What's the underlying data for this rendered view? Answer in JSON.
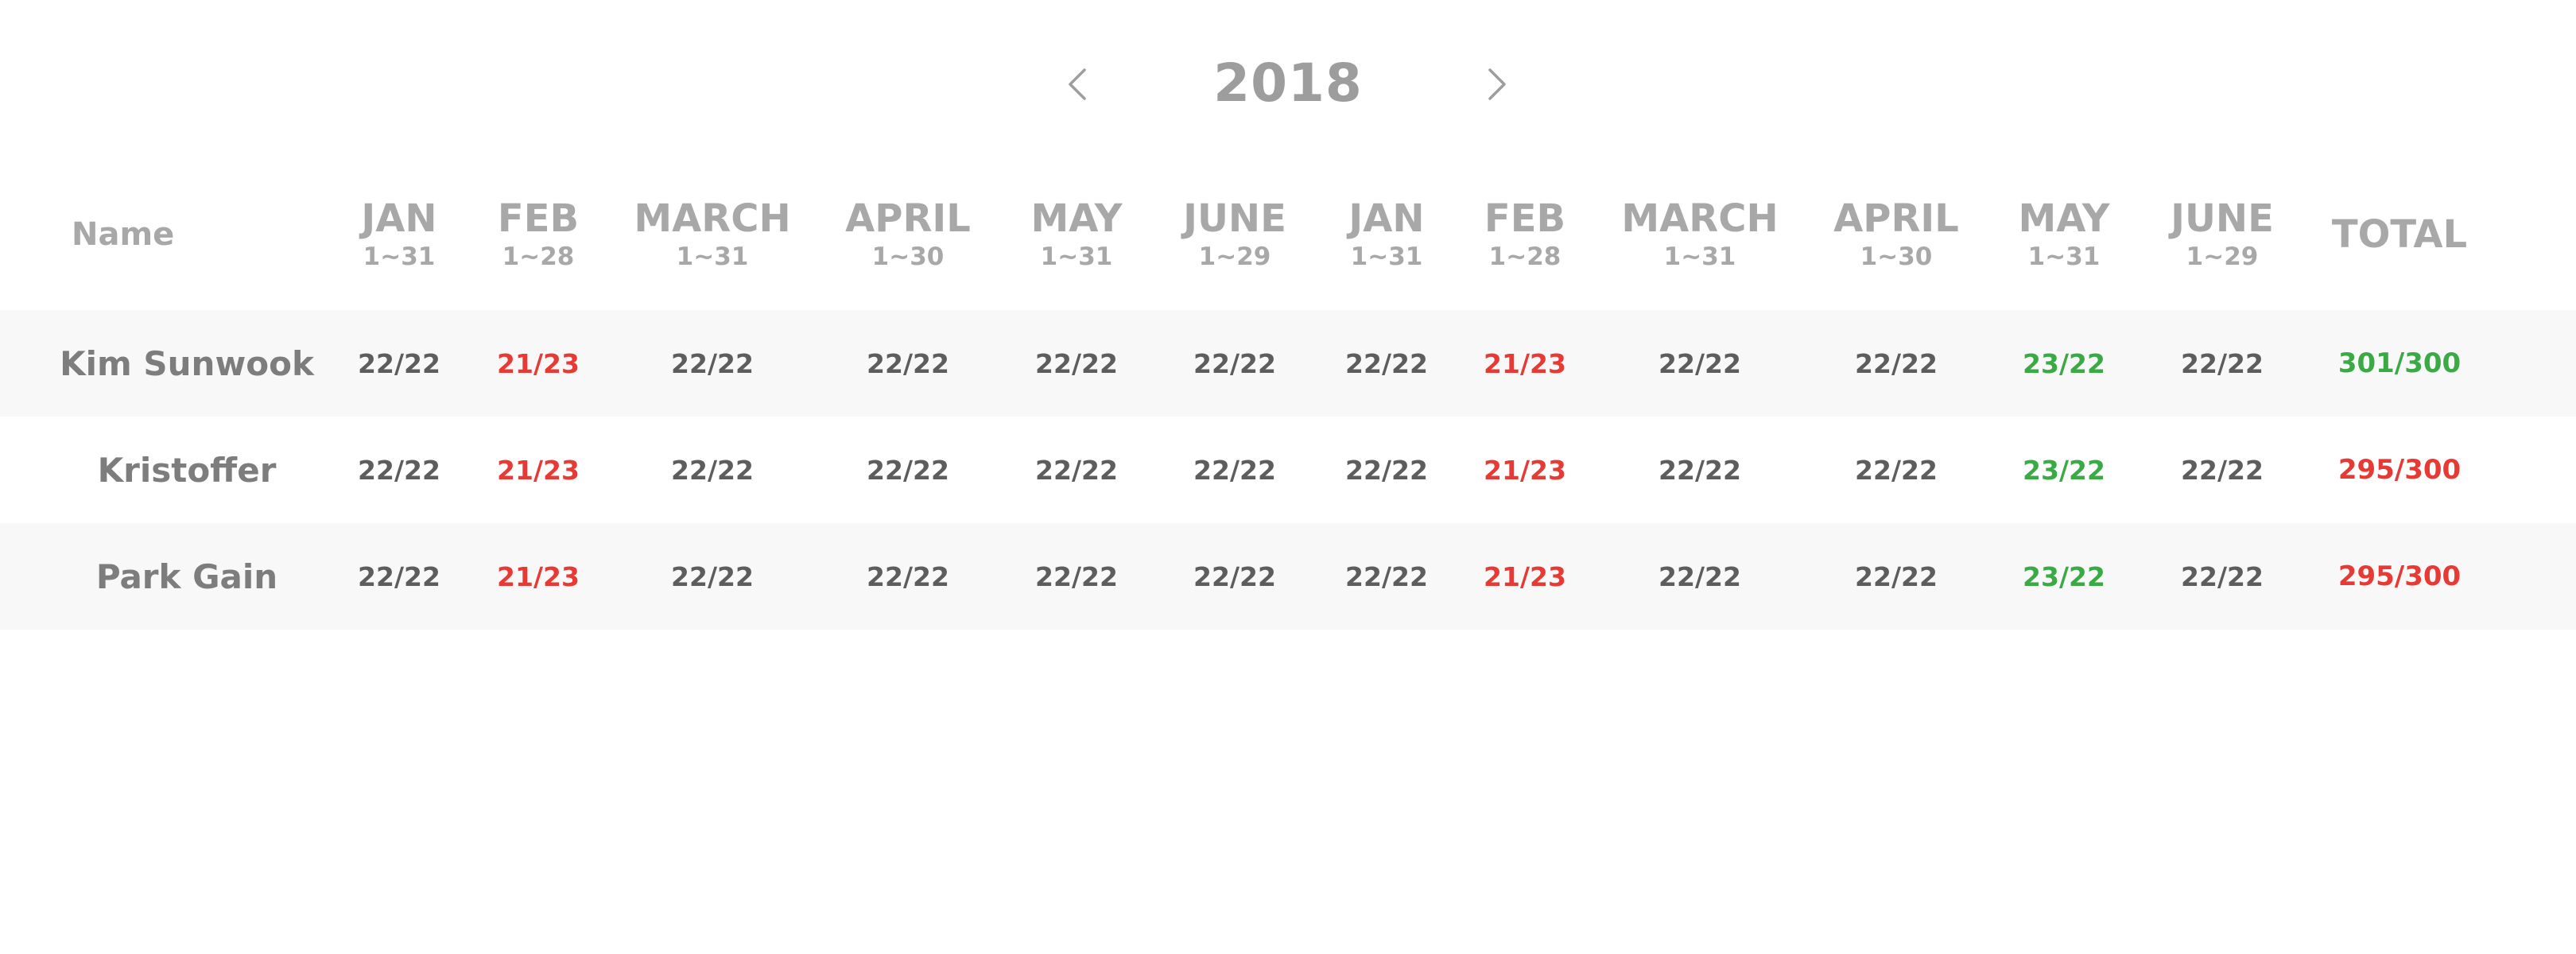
{
  "colors": {
    "default": "#5d5d5d",
    "under": "#e83a35",
    "over": "#3aaa45",
    "header": "#a8a8a8",
    "row_alt": "#f8f8f8"
  },
  "nav": {
    "year": "2018",
    "prev_icon": "chevron-left-icon",
    "next_icon": "chevron-right-icon"
  },
  "table": {
    "name_header": "Name",
    "total_header": "TOTAL",
    "months": [
      {
        "label": "JAN",
        "range": "1~31"
      },
      {
        "label": "FEB",
        "range": "1~28"
      },
      {
        "label": "MARCH",
        "range": "1~31"
      },
      {
        "label": "APRIL",
        "range": "1~30"
      },
      {
        "label": "MAY",
        "range": "1~31"
      },
      {
        "label": "JUNE",
        "range": "1~29"
      },
      {
        "label": "JAN",
        "range": "1~31"
      },
      {
        "label": "FEB",
        "range": "1~28"
      },
      {
        "label": "MARCH",
        "range": "1~31"
      },
      {
        "label": "APRIL",
        "range": "1~30"
      },
      {
        "label": "MAY",
        "range": "1~31"
      },
      {
        "label": "JUNE",
        "range": "1~29"
      }
    ],
    "rows": [
      {
        "name": "Kim Sunwook",
        "values": [
          {
            "text": "22/22",
            "status": "default"
          },
          {
            "text": "21/23",
            "status": "under"
          },
          {
            "text": "22/22",
            "status": "default"
          },
          {
            "text": "22/22",
            "status": "default"
          },
          {
            "text": "22/22",
            "status": "default"
          },
          {
            "text": "22/22",
            "status": "default"
          },
          {
            "text": "22/22",
            "status": "default"
          },
          {
            "text": "21/23",
            "status": "under"
          },
          {
            "text": "22/22",
            "status": "default"
          },
          {
            "text": "22/22",
            "status": "default"
          },
          {
            "text": "23/22",
            "status": "over"
          },
          {
            "text": "22/22",
            "status": "default"
          }
        ],
        "total": {
          "text": "301/300",
          "status": "over"
        }
      },
      {
        "name": "Kristoffer",
        "values": [
          {
            "text": "22/22",
            "status": "default"
          },
          {
            "text": "21/23",
            "status": "under"
          },
          {
            "text": "22/22",
            "status": "default"
          },
          {
            "text": "22/22",
            "status": "default"
          },
          {
            "text": "22/22",
            "status": "default"
          },
          {
            "text": "22/22",
            "status": "default"
          },
          {
            "text": "22/22",
            "status": "default"
          },
          {
            "text": "21/23",
            "status": "under"
          },
          {
            "text": "22/22",
            "status": "default"
          },
          {
            "text": "22/22",
            "status": "default"
          },
          {
            "text": "23/22",
            "status": "over"
          },
          {
            "text": "22/22",
            "status": "default"
          }
        ],
        "total": {
          "text": "295/300",
          "status": "under"
        }
      },
      {
        "name": "Park Gain",
        "values": [
          {
            "text": "22/22",
            "status": "default"
          },
          {
            "text": "21/23",
            "status": "under"
          },
          {
            "text": "22/22",
            "status": "default"
          },
          {
            "text": "22/22",
            "status": "default"
          },
          {
            "text": "22/22",
            "status": "default"
          },
          {
            "text": "22/22",
            "status": "default"
          },
          {
            "text": "22/22",
            "status": "default"
          },
          {
            "text": "21/23",
            "status": "under"
          },
          {
            "text": "22/22",
            "status": "default"
          },
          {
            "text": "22/22",
            "status": "default"
          },
          {
            "text": "23/22",
            "status": "over"
          },
          {
            "text": "22/22",
            "status": "default"
          }
        ],
        "total": {
          "text": "295/300",
          "status": "under"
        }
      }
    ]
  }
}
